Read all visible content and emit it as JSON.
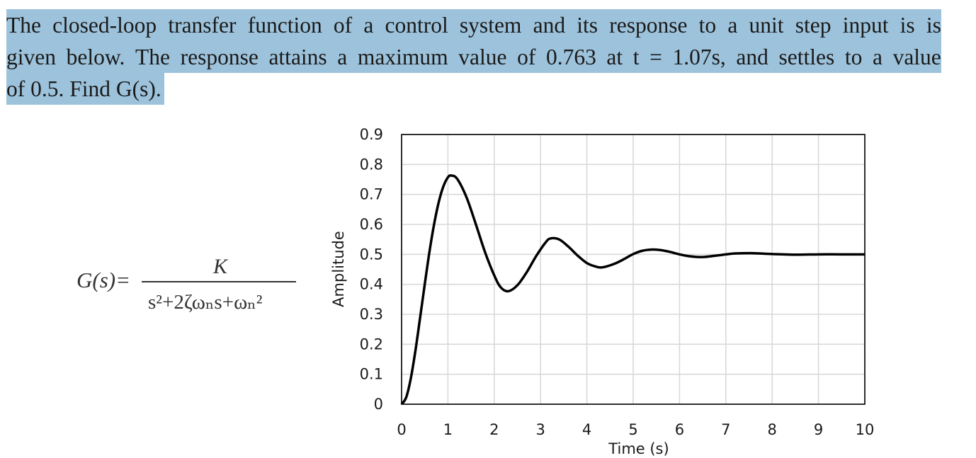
{
  "problem": {
    "line1": [
      "The",
      "closed-loop",
      "transfer",
      "function",
      "of",
      "a",
      "control",
      "system",
      "and",
      "its",
      "response",
      "to",
      "a",
      "unit",
      "step",
      "input",
      "is",
      "is"
    ],
    "line2": [
      "given",
      "below.",
      "The",
      "response",
      "attains",
      "a",
      "maximum",
      "value",
      "of",
      "0.763",
      "at",
      "t",
      "=",
      "1.07s,",
      "and",
      "settles",
      "to",
      "a",
      "value"
    ],
    "line3": "of 0.5. Find G(s)."
  },
  "formula": {
    "lhs": "G(s)=",
    "numerator": "K",
    "denominator": "s²+2ζωₙs+ωₙ²"
  },
  "chart_data": {
    "type": "line",
    "title": "",
    "xlabel": "Time (s)",
    "ylabel": "Amplitude",
    "xlim": [
      0,
      10
    ],
    "ylim": [
      0,
      0.9
    ],
    "xticks": [
      "0",
      "1",
      "2",
      "3",
      "4",
      "5",
      "6",
      "7",
      "8",
      "9",
      "10"
    ],
    "yticks": [
      "0",
      "0.1",
      "0.2",
      "0.3",
      "0.4",
      "0.5",
      "0.6",
      "0.7",
      "0.8",
      "0.9"
    ],
    "grid": true,
    "legend": "none",
    "series": [
      {
        "color": "#000000",
        "x": [
          0,
          0.1,
          0.2,
          0.3,
          0.4,
          0.5,
          0.6,
          0.7,
          0.8,
          0.9,
          1.0,
          1.07,
          1.2,
          1.4,
          1.6,
          1.8,
          2.0,
          2.14,
          2.3,
          2.5,
          2.7,
          2.9,
          3.1,
          3.21,
          3.4,
          3.6,
          3.8,
          4.0,
          4.2,
          4.35,
          4.6,
          4.8,
          5.0,
          5.2,
          5.42,
          5.6,
          5.8,
          6.0,
          6.2,
          6.49,
          6.8,
          7.0,
          7.2,
          7.56,
          8.0,
          8.5,
          9.0,
          9.5,
          10.0
        ],
        "y": [
          0,
          0.023,
          0.087,
          0.18,
          0.289,
          0.4,
          0.507,
          0.599,
          0.673,
          0.726,
          0.757,
          0.763,
          0.752,
          0.691,
          0.602,
          0.508,
          0.43,
          0.39,
          0.377,
          0.397,
          0.44,
          0.493,
          0.538,
          0.553,
          0.55,
          0.526,
          0.496,
          0.471,
          0.459,
          0.457,
          0.469,
          0.484,
          0.501,
          0.512,
          0.516,
          0.514,
          0.508,
          0.5,
          0.494,
          0.491,
          0.496,
          0.5,
          0.503,
          0.504,
          0.501,
          0.499,
          0.5,
          0.5,
          0.5
        ]
      }
    ]
  }
}
